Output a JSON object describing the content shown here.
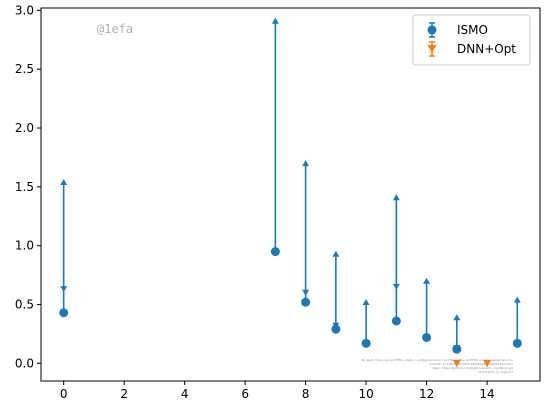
{
  "chart_data": {
    "type": "scatter",
    "title": "",
    "xlabel": "",
    "ylabel": "",
    "xlim": [
      -0.75,
      15.75
    ],
    "ylim": [
      -0.15,
      3.02
    ],
    "xticks": [
      0,
      2,
      4,
      6,
      8,
      10,
      12,
      14
    ],
    "yticks": [
      0.0,
      0.5,
      1.0,
      1.5,
      2.0,
      2.5,
      3.0
    ],
    "xtick_labels": [
      "0",
      "2",
      "4",
      "6",
      "8",
      "10",
      "12",
      "14"
    ],
    "ytick_labels": [
      "0.0",
      "0.5",
      "1.0",
      "1.5",
      "2.0",
      "2.5",
      "3.0"
    ],
    "grid": false,
    "legend_position": "top-right",
    "series": [
      {
        "name": "ISMO",
        "color": "#1f77b4",
        "marker": "circle",
        "points": [
          {
            "x": 0,
            "y": 0.43,
            "lower": 0.43,
            "upper": 1.55
          },
          {
            "x": 7,
            "y": 0.95,
            "lower": 0.95,
            "upper": 2.92
          },
          {
            "x": 8,
            "y": 0.52,
            "lower": 0.52,
            "upper": 1.71
          },
          {
            "x": 9,
            "y": 0.29,
            "lower": 0.29,
            "upper": 0.94
          },
          {
            "x": 10,
            "y": 0.17,
            "lower": 0.17,
            "upper": 0.53
          },
          {
            "x": 11,
            "y": 0.36,
            "lower": 0.36,
            "upper": 1.42
          },
          {
            "x": 12,
            "y": 0.22,
            "lower": 0.22,
            "upper": 0.71
          },
          {
            "x": 13,
            "y": 0.12,
            "lower": 0.12,
            "upper": 0.4
          },
          {
            "x": 15,
            "y": 0.17,
            "lower": 0.17,
            "upper": 0.55
          }
        ],
        "mean_markers": [
          {
            "x": 0,
            "y": 0.63
          },
          {
            "x": 7,
            "y": 0.95
          },
          {
            "x": 8,
            "y": 0.6
          },
          {
            "x": 9,
            "y": 0.32
          },
          {
            "x": 10,
            "y": 0.16
          },
          {
            "x": 11,
            "y": 0.65
          },
          {
            "x": 12,
            "y": 0.22
          },
          {
            "x": 13,
            "y": 0.13
          },
          {
            "x": 15,
            "y": 0.17
          }
        ]
      },
      {
        "name": "DNN+Opt",
        "color": "#ff7f0e",
        "marker": "triangle-down",
        "points": [
          {
            "x": 13,
            "y": 0.0
          },
          {
            "x": 14,
            "y": 0.0
          }
        ]
      }
    ],
    "annotations": {
      "watermark": "@1efa",
      "footnote_lines": [
        "By Kjetil Olsen Lye @ ETHZ <kjetil.o.lye@gmail.com> and Beep Mep @ ETHZ <deep.mep@mail.ch>",
        "Commit: 1c1af5417b030f7c6f3b6a9d3c9d4f1235e7cfcc",
        "Repo: https://github.com/kjetil-lye/ismo_validation.git",
        "Hostname: yc-login-07"
      ]
    }
  }
}
